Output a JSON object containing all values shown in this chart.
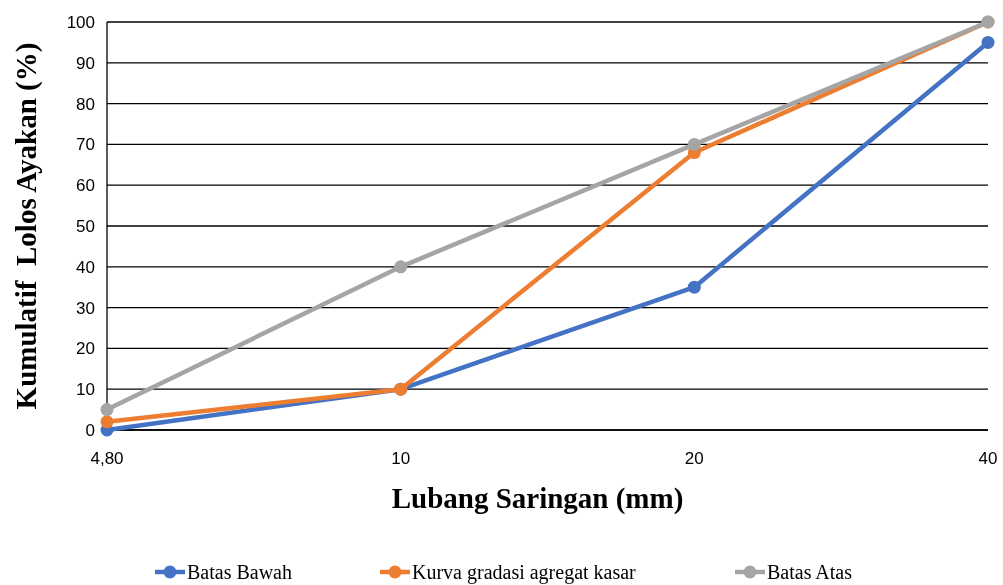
{
  "chart_data": {
    "type": "line",
    "xlabel": "Lubang Saringan (mm)",
    "ylabel": "Kumulatif  Lolos Ayakan (%)",
    "categories": [
      "4,80",
      "10",
      "20",
      "40"
    ],
    "ylim": [
      0,
      100
    ],
    "yticks": [
      0,
      10,
      20,
      30,
      40,
      50,
      60,
      70,
      80,
      90,
      100
    ],
    "grid": "y",
    "legend": "bottom",
    "marker": "circle",
    "line_style": "solid",
    "series": [
      {
        "name": "Batas Bawah",
        "color": "#4472c4",
        "values": [
          0,
          10,
          35,
          95
        ]
      },
      {
        "name": "Kurva gradasi agregat kasar",
        "color": "#ed7d31",
        "values": [
          2,
          10,
          68,
          100
        ]
      },
      {
        "name": "Batas Atas",
        "color": "#a5a5a5",
        "values": [
          5,
          40,
          70,
          100
        ]
      }
    ]
  }
}
